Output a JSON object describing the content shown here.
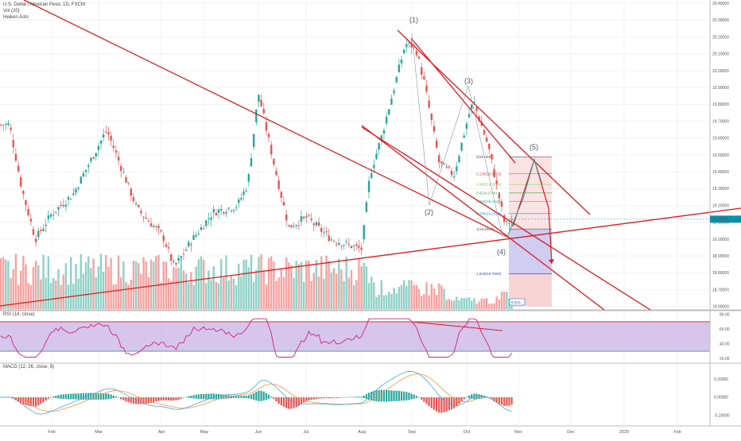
{
  "header": {
    "symbol_line": "U.S. Dollar / Mexican Peso, 1D, FXCM",
    "vol_label": "Vol (20)",
    "heiken_label": "Heiken Ashi",
    "rsi_label": "RSI (14, close)",
    "macd_label": "MACD (12, 26, close, 9)"
  },
  "colors": {
    "bull": "#26a69a",
    "bear": "#ef5350",
    "trendline": "#e0191b",
    "rsi_line": "#d81b8a",
    "rsi_band": "#c8b3e6",
    "macd_line": "#4aa3df",
    "signal_line": "#f59342",
    "price_tag": "#0f8ea8",
    "target_bg": "#e5e4f8"
  },
  "price_axis": [
    "20.40000",
    "20.30000",
    "20.20000",
    "20.10000",
    "20.00000",
    "19.90000",
    "19.80000",
    "19.70000",
    "19.60000",
    "19.50000",
    "19.40000",
    "19.30000",
    "19.20000",
    "19.10000",
    "19.00000",
    "18.90000",
    "18.80000",
    "18.70000",
    "18.60000"
  ],
  "last_price": "19.11856",
  "rsi_axis": [
    "80.00",
    "60.00",
    "40.00",
    "20.00"
  ],
  "macd_axis": [
    "0.20000",
    "0.00000",
    "-0.20000"
  ],
  "time_axis": [
    "Feb",
    "Mar",
    "Apr",
    "May",
    "Jun",
    "Jul",
    "Aug",
    "Sep",
    "Oct",
    "Nov",
    "Dec",
    "2020",
    "Feb"
  ],
  "waves": [
    "(1)",
    "(2)",
    "(3)",
    "(4)",
    "(5)"
  ],
  "fib_levels": [
    {
      "label": "0(19.4891)",
      "color": "#555555"
    },
    {
      "label": "0.236(19.3879)",
      "color": "#e53935"
    },
    {
      "label": "0.382(19.3248)",
      "color": "#8bc34a"
    },
    {
      "label": "0.5(19.2744)",
      "color": "#43a047"
    },
    {
      "label": "0.618(19.2240)",
      "color": "#26a69a"
    },
    {
      "label": "0.786(19.1519)",
      "color": "#1e88e5"
    },
    {
      "label": "1(19.0603)",
      "color": "#555555"
    },
    {
      "label": "1.618(18.7940)",
      "color": "#3949ab"
    }
  ],
  "volume_tag": "6.833",
  "chart_data": {
    "type": "candlestick",
    "title": "U.S. Dollar / Mexican Peso, 1D, FXCM",
    "series": [
      {
        "name": "Heiken Ashi"
      },
      {
        "name": "Vol (20)"
      },
      {
        "name": "RSI (14, close)"
      },
      {
        "name": "MACD (12, 26, close, 9)"
      }
    ],
    "x_ticks": [
      "Feb",
      "Mar",
      "Apr",
      "May",
      "Jun",
      "Jul",
      "Aug",
      "Sep",
      "Oct",
      "Nov",
      "Dec",
      "2020",
      "Feb"
    ],
    "ylim": [
      18.6,
      20.4
    ],
    "anchors": [
      {
        "t": "Jan 1",
        "v": 19.68
      },
      {
        "t": "Jan 10",
        "v": 19.3
      },
      {
        "t": "Jan 20",
        "v": 19.0
      },
      {
        "t": "Feb 1",
        "v": 19.15
      },
      {
        "t": "Feb 14",
        "v": 19.27
      },
      {
        "t": "Mar 5",
        "v": 19.65
      },
      {
        "t": "Mar 20",
        "v": 19.18
      },
      {
        "t": "Apr 2",
        "v": 19.02
      },
      {
        "t": "Apr 10",
        "v": 18.83
      },
      {
        "t": "Apr 22",
        "v": 18.99
      },
      {
        "t": "May 6",
        "v": 19.16
      },
      {
        "t": "May 20",
        "v": 19.2
      },
      {
        "t": "May 26",
        "v": 19.33
      },
      {
        "t": "Jun 1",
        "v": 19.87
      },
      {
        "t": "Jun 10",
        "v": 19.48
      },
      {
        "t": "Jun 20",
        "v": 19.07
      },
      {
        "t": "Jul 1",
        "v": 19.13
      },
      {
        "t": "Jul 15",
        "v": 19.0
      },
      {
        "t": "Aug 1",
        "v": 18.94
      },
      {
        "t": "Aug 6",
        "v": 19.38
      },
      {
        "t": "Aug 13",
        "v": 19.6
      },
      {
        "t": "Aug 28",
        "v": 20.16
      },
      {
        "t": "Sep 3",
        "v": 20.14
      },
      {
        "t": "Sep 8",
        "v": 19.92
      },
      {
        "t": "Sep 16",
        "v": 19.45
      },
      {
        "t": "Sep 24",
        "v": 19.38
      },
      {
        "t": "Oct 2",
        "v": 19.73
      },
      {
        "t": "Oct 5",
        "v": 19.82
      },
      {
        "t": "Oct 14",
        "v": 19.55
      },
      {
        "t": "Oct 24",
        "v": 19.08
      },
      {
        "t": "Oct 28",
        "v": 19.12
      }
    ],
    "trendlines": 6,
    "projection": {
      "wave5_target": 19.49,
      "final_target": 18.88
    }
  }
}
